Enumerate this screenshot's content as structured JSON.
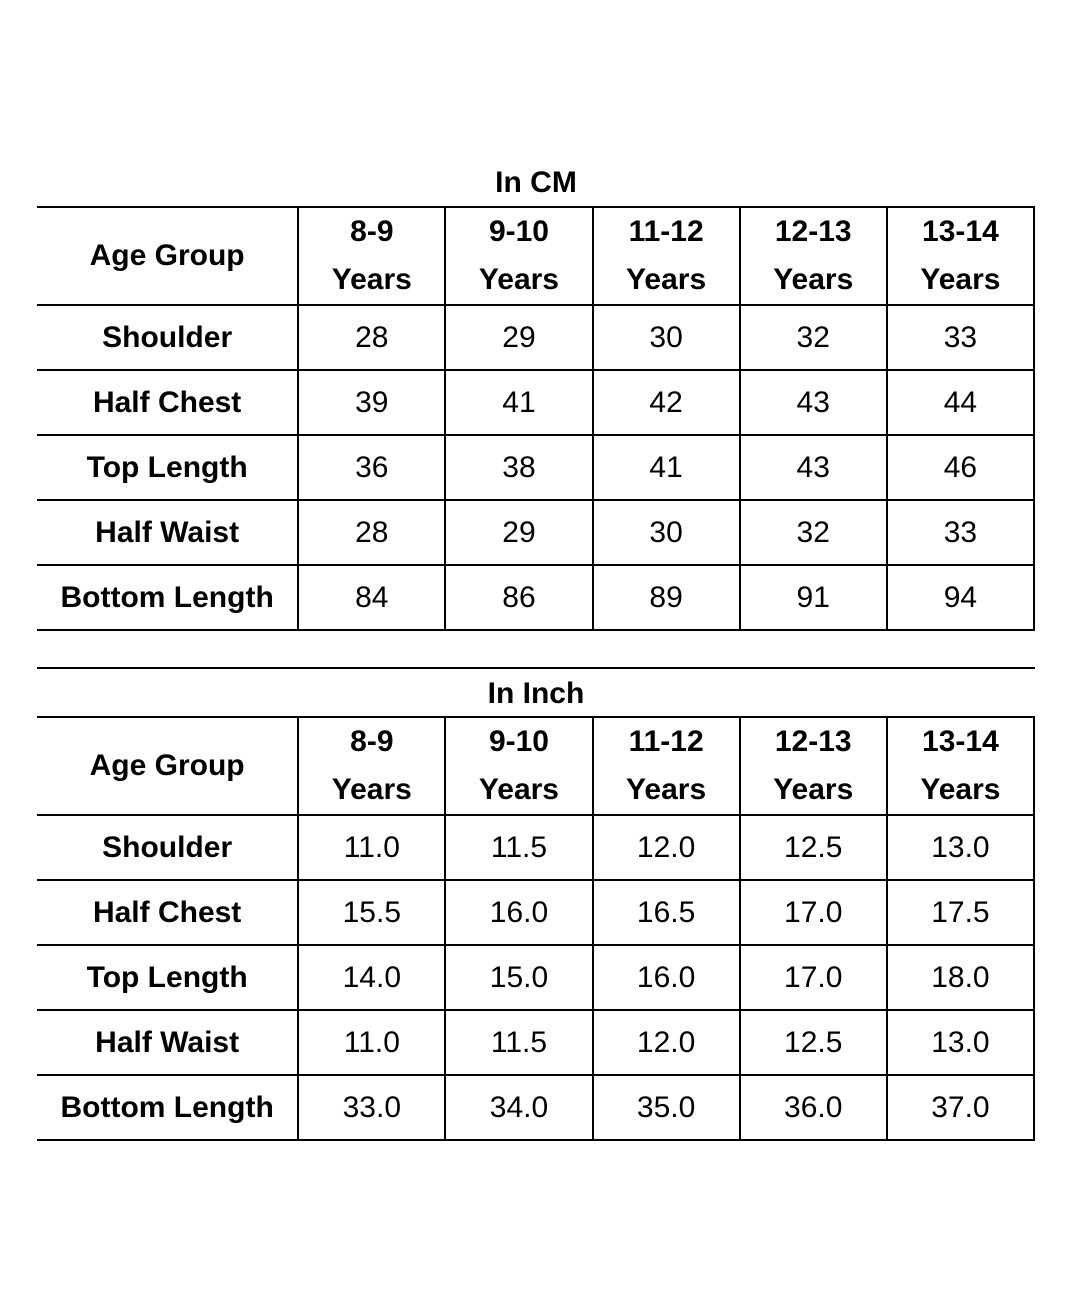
{
  "tables": [
    {
      "title": "In CM",
      "header_label": "Age Group",
      "columns": [
        {
          "top": "8-9",
          "bottom": "Years"
        },
        {
          "top": "9-10",
          "bottom": "Years"
        },
        {
          "top": "11-12",
          "bottom": "Years"
        },
        {
          "top": "12-13",
          "bottom": "Years"
        },
        {
          "top": "13-14",
          "bottom": "Years"
        }
      ],
      "rows": [
        {
          "label": "Shoulder",
          "values": [
            "28",
            "29",
            "30",
            "32",
            "33"
          ]
        },
        {
          "label": "Half Chest",
          "values": [
            "39",
            "41",
            "42",
            "43",
            "44"
          ]
        },
        {
          "label": "Top Length",
          "values": [
            "36",
            "38",
            "41",
            "43",
            "46"
          ]
        },
        {
          "label": "Half Waist",
          "values": [
            "28",
            "29",
            "30",
            "32",
            "33"
          ]
        },
        {
          "label": "Bottom Length",
          "values": [
            "84",
            "86",
            "89",
            "91",
            "94"
          ]
        }
      ]
    },
    {
      "title": "In Inch",
      "header_label": "Age Group",
      "columns": [
        {
          "top": "8-9",
          "bottom": "Years"
        },
        {
          "top": "9-10",
          "bottom": "Years"
        },
        {
          "top": "11-12",
          "bottom": "Years"
        },
        {
          "top": "12-13",
          "bottom": "Years"
        },
        {
          "top": "13-14",
          "bottom": "Years"
        }
      ],
      "rows": [
        {
          "label": "Shoulder",
          "values": [
            "11.0",
            "11.5",
            "12.0",
            "12.5",
            "13.0"
          ]
        },
        {
          "label": "Half Chest",
          "values": [
            "15.5",
            "16.0",
            "16.5",
            "17.0",
            "17.5"
          ]
        },
        {
          "label": "Top Length",
          "values": [
            "14.0",
            "15.0",
            "16.0",
            "17.0",
            "18.0"
          ]
        },
        {
          "label": "Half Waist",
          "values": [
            "11.0",
            "11.5",
            "12.0",
            "12.5",
            "13.0"
          ]
        },
        {
          "label": "Bottom Length",
          "values": [
            "33.0",
            "34.0",
            "35.0",
            "36.0",
            "37.0"
          ]
        }
      ]
    }
  ]
}
